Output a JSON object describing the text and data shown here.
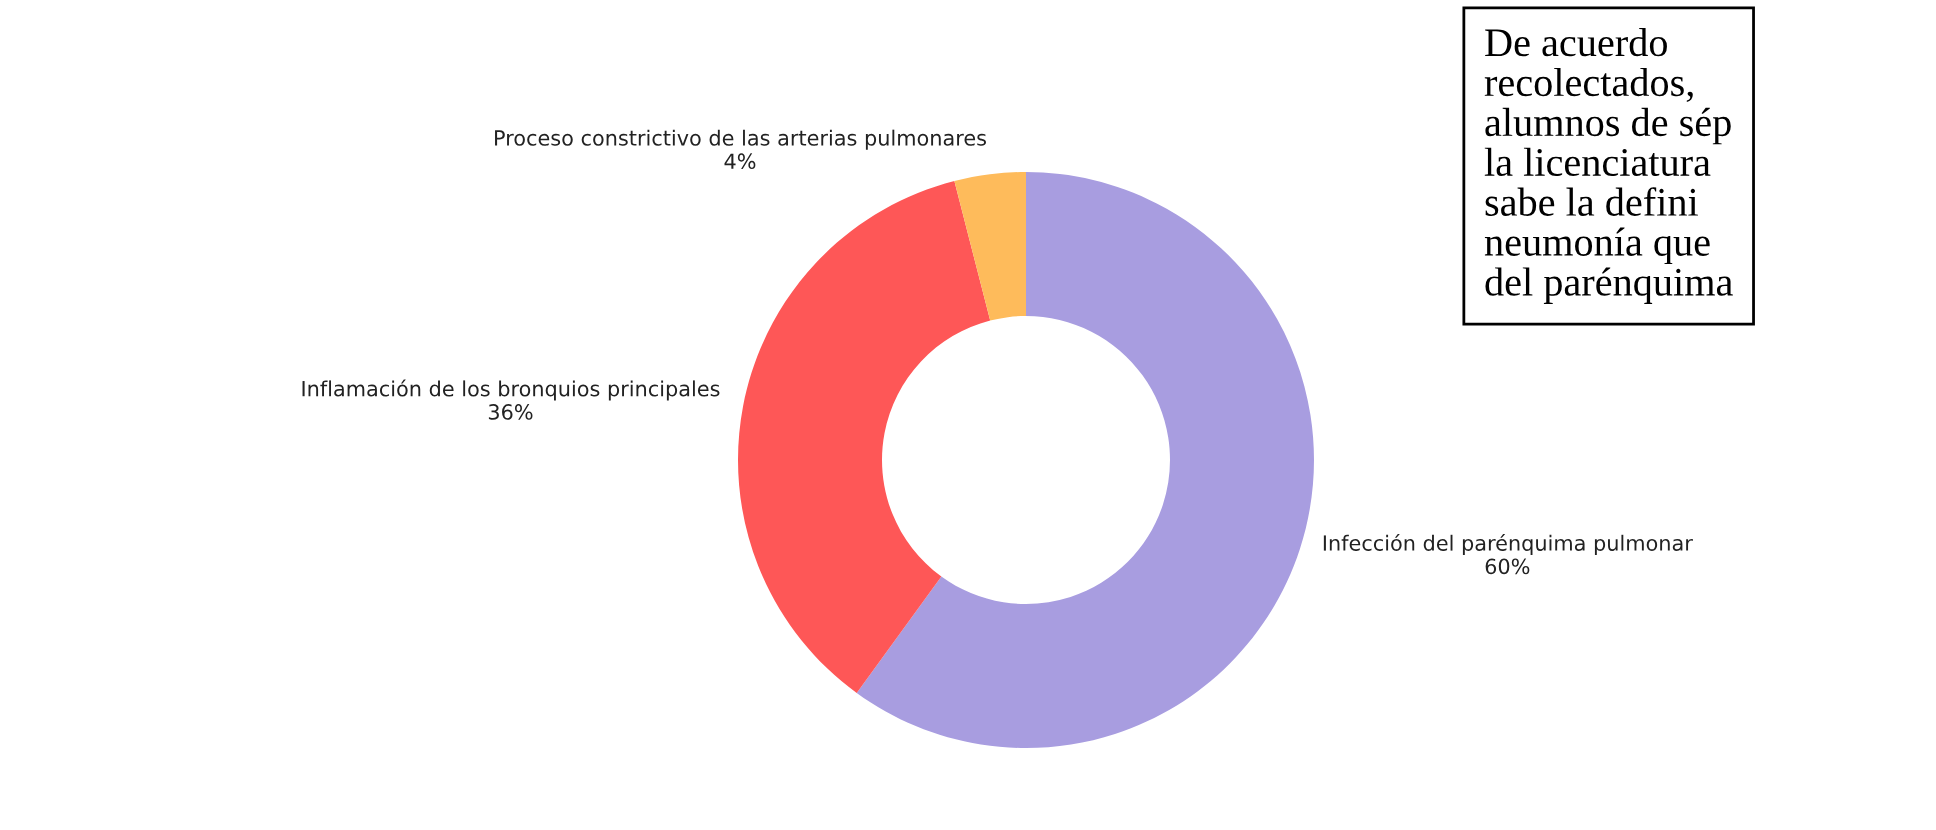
{
  "chart_data": {
    "type": "donut",
    "categories": [
      "Infección del parénquima pulmonar",
      "Inflamación de los bronquios principales",
      "Proceso constrictivo de las arterias pulmonares"
    ],
    "values": [
      60,
      36,
      4
    ],
    "value_labels": [
      "60%",
      "36%",
      "4%"
    ],
    "colors": [
      "#a89de0",
      "#fe5757",
      "#febb5b"
    ],
    "annotations": [
      "De acuerdo\nrecolectados,\nalumnos de sép\nla licenciatura\nsabe la defini\nneumonía que\ndel parénquima"
    ]
  }
}
